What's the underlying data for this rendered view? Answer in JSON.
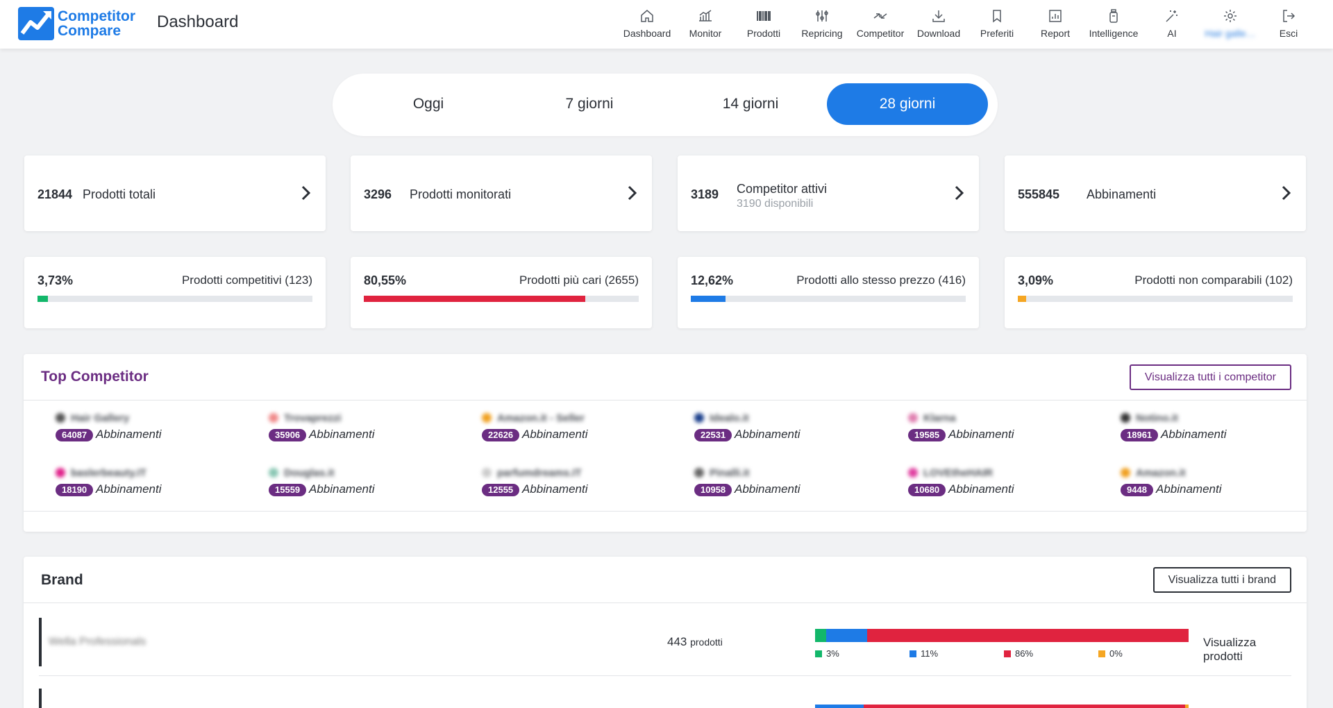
{
  "app": {
    "brand_line1": "Competitor",
    "brand_line2": "Compare",
    "page_title": "Dashboard"
  },
  "nav": [
    {
      "label": "Dashboard",
      "icon": "home-icon"
    },
    {
      "label": "Monitor",
      "icon": "monitor-chart-icon"
    },
    {
      "label": "Prodotti",
      "icon": "barcode-icon"
    },
    {
      "label": "Repricing",
      "icon": "sliders-icon"
    },
    {
      "label": "Competitor",
      "icon": "arrows-compare-icon"
    },
    {
      "label": "Download",
      "icon": "download-icon"
    },
    {
      "label": "Preferiti",
      "icon": "bookmark-icon"
    },
    {
      "label": "Report",
      "icon": "report-icon"
    },
    {
      "label": "Intelligence",
      "icon": "bottle-icon"
    },
    {
      "label": "AI",
      "icon": "magic-wand-icon"
    },
    {
      "label": "Hair galle…",
      "icon": "gear-icon"
    },
    {
      "label": "Esci",
      "icon": "logout-icon"
    }
  ],
  "periods": [
    {
      "label": "Oggi",
      "active": false
    },
    {
      "label": "7 giorni",
      "active": false
    },
    {
      "label": "14 giorni",
      "active": false
    },
    {
      "label": "28 giorni",
      "active": true
    }
  ],
  "stats": [
    {
      "value": "21844",
      "label": "Prodotti totali",
      "sub": ""
    },
    {
      "value": "3296",
      "label": "Prodotti monitorati",
      "sub": ""
    },
    {
      "value": "3189",
      "label": "Competitor attivi",
      "sub": "3190 disponibili"
    },
    {
      "value": "555845",
      "label": "Abbinamenti",
      "sub": ""
    }
  ],
  "progress": [
    {
      "pct": "3,73%",
      "label": "Prodotti competitivi (123)",
      "fraction": 0.0373,
      "color": "#12b76a"
    },
    {
      "pct": "80,55%",
      "label": "Prodotti più cari (2655)",
      "fraction": 0.8055,
      "color": "#e0233f"
    },
    {
      "pct": "12,62%",
      "label": "Prodotti allo stesso prezzo (416)",
      "fraction": 0.1262,
      "color": "#1e7be6"
    },
    {
      "pct": "3,09%",
      "label": "Prodotti non comparabili (102)",
      "fraction": 0.0309,
      "color": "#f5a623"
    }
  ],
  "top_competitor": {
    "title": "Top Competitor",
    "button": "Visualizza tutti i competitor",
    "abb_label": "Abbinamenti",
    "items": [
      {
        "name": "Hair Gallery",
        "count": "64087",
        "dot": "#555"
      },
      {
        "name": "Trovaprezzi",
        "count": "35906",
        "dot": "#f08a8a"
      },
      {
        "name": "Amazon.it - Seller",
        "count": "22626",
        "dot": "#f0a020"
      },
      {
        "name": "Idealo.it",
        "count": "22531",
        "dot": "#1b3f8b"
      },
      {
        "name": "Klarna",
        "count": "19585",
        "dot": "#e07fb0"
      },
      {
        "name": "Notino.it",
        "count": "18961",
        "dot": "#333"
      },
      {
        "name": "baslerbeauty.IT",
        "count": "18190",
        "dot": "#e0208a"
      },
      {
        "name": "Douglas.it",
        "count": "15559",
        "dot": "#8ac7b4"
      },
      {
        "name": "parfumdreams.IT",
        "count": "12555",
        "dot": "#ccc"
      },
      {
        "name": "Pinalli.it",
        "count": "10958",
        "dot": "#666"
      },
      {
        "name": "LOVEtheHAIR",
        "count": "10680",
        "dot": "#e040a0"
      },
      {
        "name": "Amazon.it",
        "count": "9448",
        "dot": "#f0a020"
      }
    ]
  },
  "brand": {
    "title": "Brand",
    "button": "Visualizza tutti i brand",
    "rows": [
      {
        "name": "Wella Professionals",
        "count": "443",
        "unit": "prodotti",
        "link": "Visualizza prodotti",
        "segments": [
          {
            "label": "3%",
            "value": 3,
            "color": "#12b76a"
          },
          {
            "label": "11%",
            "value": 11,
            "color": "#1e7be6"
          },
          {
            "label": "86%",
            "value": 86,
            "color": "#e0233f"
          },
          {
            "label": "0%",
            "value": 0,
            "color": "#f5a623"
          }
        ]
      },
      {
        "name": "",
        "count": "",
        "unit": "",
        "link": "",
        "segments": [
          {
            "label": "",
            "value": 0,
            "color": "#12b76a"
          },
          {
            "label": "",
            "value": 13,
            "color": "#1e7be6"
          },
          {
            "label": "",
            "value": 86,
            "color": "#e0233f"
          },
          {
            "label": "",
            "value": 1,
            "color": "#f5a623"
          }
        ]
      }
    ]
  }
}
